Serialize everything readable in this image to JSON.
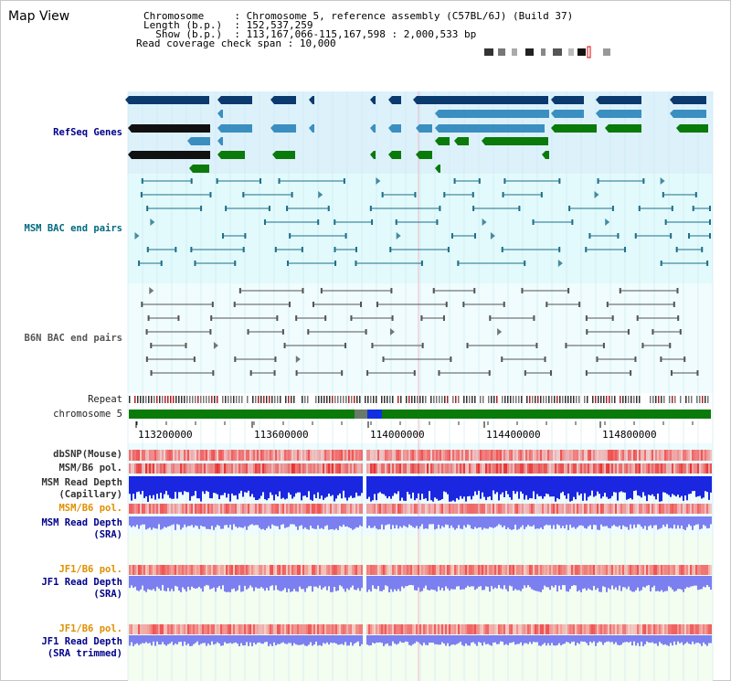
{
  "app": {
    "title": "Map View"
  },
  "info": {
    "chromosome_key": "Chromosome",
    "chromosome_value": "Chromosome 5, reference assembly (C57BL/6J) (Build 37)",
    "length_key": "Length (b.p.)",
    "length_value": "152,537,259",
    "show_key": "Show (b.p.)",
    "show_value": "113,167,066-115,167,598 : 2,000,533 bp",
    "span_key": "Read coverage check span",
    "span_value": "10,000"
  },
  "tracks": {
    "refseq": "RefSeq Genes",
    "msm_bac": "MSM BAC end pairs",
    "b6n_bac": "B6N BAC end pairs",
    "repeat": "Repeat",
    "chromosome": "chromosome 5",
    "dbsnp": "dbSNP(Mouse)",
    "msm_b6_pol_1": "MSM/B6 pol.",
    "msm_read_depth_cap_1": "MSM Read Depth",
    "msm_read_depth_cap_2": "(Capillary)",
    "msm_b6_pol_2": "MSM/B6 pol.",
    "msm_read_depth_sra_1": "MSM Read Depth",
    "msm_read_depth_sra_2": "(SRA)",
    "jf1_b6_pol_1": "JF1/B6 pol.",
    "jf1_read_depth_sra_1": "JF1 Read Depth",
    "jf1_read_depth_sra_2": "(SRA)",
    "jf1_b6_pol_2": "JF1/B6 pol.",
    "jf1_read_depth_trim_1": "JF1 Read Depth",
    "jf1_read_depth_trim_2": "(SRA trimmed)"
  },
  "axis": {
    "ticks": [
      "113200000",
      "113600000",
      "114000000",
      "114400000",
      "114800000"
    ]
  },
  "colors": {
    "refseq_dark": "#0b3a6e",
    "refseq_mid": "#3a8fc0",
    "refseq_green": "#0a7a0a",
    "msm_line": "#1f6f8b",
    "b6n_line": "#555555",
    "gene_bg": "#ddf1fb",
    "bac_bg": "#e2fafb",
    "chromosome_bar": "#0a7a0a",
    "depth_blue": "#1a26e0",
    "depth_light": "#7b7ff0",
    "pol_red": "#f05050",
    "label_blue": "#00008b",
    "label_teal": "#006a80",
    "label_orange": "#e09000"
  }
}
